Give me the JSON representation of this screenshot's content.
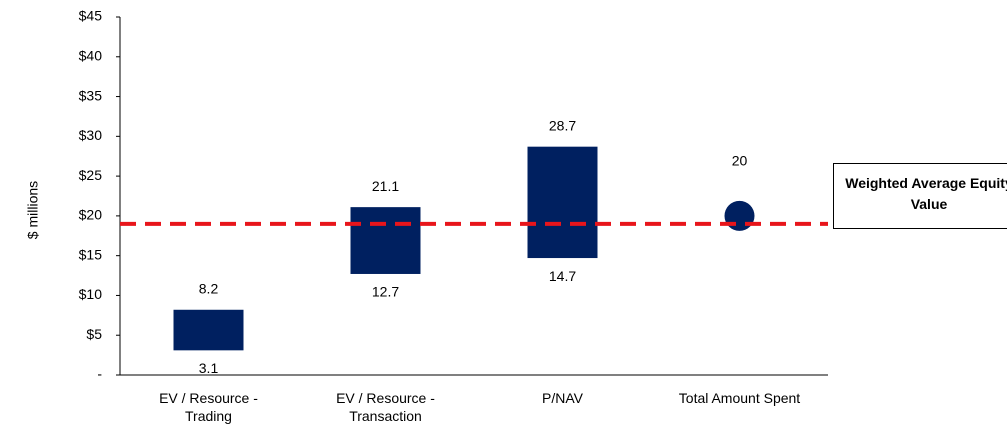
{
  "chart_data": {
    "type": "floating_bar",
    "y_axis_label": "$ millions",
    "categories": [
      "EV / Resource - Trading",
      "EV / Resource - Transaction",
      "P/NAV",
      "Total Amount Spent"
    ],
    "low": [
      3.1,
      12.7,
      14.7,
      null
    ],
    "high": [
      8.2,
      21.1,
      28.7,
      null
    ],
    "marker": [
      null,
      null,
      null,
      20
    ],
    "color": "#002060",
    "ylim": [
      0,
      45
    ],
    "yticks": [
      {
        "value": 0,
        "label": "-"
      },
      {
        "value": 5,
        "label": "$5"
      },
      {
        "value": 10,
        "label": "$10"
      },
      {
        "value": 15,
        "label": "$15"
      },
      {
        "value": 20,
        "label": "$20"
      },
      {
        "value": 25,
        "label": "$25"
      },
      {
        "value": 30,
        "label": "$30"
      },
      {
        "value": 35,
        "label": "$35"
      },
      {
        "value": 40,
        "label": "$40"
      },
      {
        "value": 45,
        "label": "$45"
      }
    ],
    "reference_line": {
      "value": 19,
      "label": "Weighted Average Equity Value",
      "color": "#e8151b"
    }
  }
}
